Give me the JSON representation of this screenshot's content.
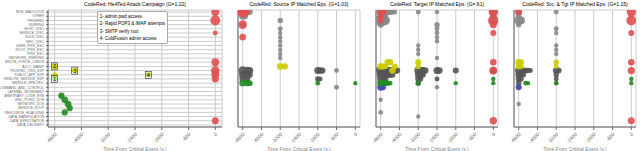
{
  "chart_data": [
    {
      "type": "scatter",
      "title": "CodeRed: HeATed Attack Campaign (G=1.22)",
      "xlabel": "Time From Critical Event (s.)",
      "xlim": [
        -5000,
        200
      ],
      "xticks": [
        -4800,
        -4000,
        -3200,
        -2400,
        -1600,
        -800,
        0
      ],
      "ylim": [
        -0.5,
        27.5
      ],
      "yticks": [
        {
          "value": 0,
          "label": "DATA_DELIVERY"
        },
        {
          "value": 1,
          "label": "DATA_EXFILTRATION"
        },
        {
          "value": 2,
          "label": "DATA_MANIPULATION"
        },
        {
          "value": 3,
          "label": "RESOURCE_HIJACKING"
        },
        {
          "value": 4,
          "label": "SERVICE_STOP"
        },
        {
          "value": 5,
          "label": "NETWORK_DOS"
        },
        {
          "value": 6,
          "label": "END_POINT_DOS"
        },
        {
          "value": 7,
          "label": "ARBITRARY_CODE_EXE"
        },
        {
          "value": 8,
          "label": "LATERAL_MOVEMENT"
        },
        {
          "value": 9,
          "label": "COMMAND_AND_CONTROL"
        },
        {
          "value": 10,
          "label": "SERVICE_SPECIFIC"
        },
        {
          "value": 11,
          "label": "REMOTE_SERVICE_EXP"
        },
        {
          "value": 12,
          "label": "PUBLIC_APP_EXP"
        },
        {
          "value": 13,
          "label": "TRUSTED_ORG_EXP"
        },
        {
          "value": 14,
          "label": "ACCT_MANIP"
        },
        {
          "value": 15,
          "label": "BRUTE_FORCE_CREDS"
        },
        {
          "value": 16,
          "label": "NETWORK_SNIFFING"
        },
        {
          "value": 17,
          "label": "PRIV_ESC"
        },
        {
          "value": 18,
          "label": "ROOT_PRIV_ESC"
        },
        {
          "value": 19,
          "label": "USER_PRIV_ESC"
        },
        {
          "value": 20,
          "label": "INFO_DISC"
        },
        {
          "value": 21,
          "label": "VULN_DISC"
        },
        {
          "value": 22,
          "label": "SERVICE_DISC"
        },
        {
          "value": 23,
          "label": "HOST_DISC"
        },
        {
          "value": 24,
          "label": "SURFING"
        },
        {
          "value": 25,
          "label": "PHISHING"
        },
        {
          "value": 26,
          "label": "OTHER"
        },
        {
          "value": 27,
          "label": "NON_MALICIOUS"
        }
      ],
      "grid": true,
      "x": [
        -4800,
        -4200,
        -4800,
        -2000,
        -4800,
        -4600,
        -4500,
        -4400,
        -4350,
        -4500,
        0,
        0,
        0,
        0,
        0,
        0,
        0,
        0
      ],
      "y": [
        14,
        13,
        12,
        12,
        11,
        7,
        6,
        5,
        4,
        3,
        27,
        25,
        22,
        15,
        13,
        12,
        11,
        1
      ],
      "size": [
        14,
        12,
        11,
        10,
        10,
        16,
        18,
        18,
        16,
        16,
        28,
        40,
        10,
        25,
        30,
        25,
        20,
        20
      ],
      "colors": [
        "#cccc00",
        "#cccc00",
        "#cccc00",
        "#aad400",
        "#90ee90",
        "#228b22",
        "#228b22",
        "#228b22",
        "#228b22",
        "#228b22",
        "#e05050",
        "#e05050",
        "#e05050",
        "#e05050",
        "#e05050",
        "#e05050",
        "#e05050",
        "#e05050"
      ],
      "annotations": [
        {
          "text": "1",
          "x": -4800,
          "y": 11
        },
        {
          "text": "2",
          "x": -4800,
          "y": 14
        },
        {
          "text": "3",
          "x": -4200,
          "y": 13
        },
        {
          "text": "4",
          "x": -2000,
          "y": 12
        }
      ],
      "text_box": [
        "1- admin.pwd access",
        "2- Rapid POP3 & IMAP attempts",
        "3- SMTP verify root",
        "4- ColdFusion admin access"
      ]
    },
    {
      "type": "scatter",
      "title": "CodeRed: Source IP Matched Eps. (G=1.03)",
      "xlabel": "Time From Critical Event (s.)",
      "xlim": [
        -5000,
        200
      ],
      "xticks": [
        -4800,
        -4000,
        -3200,
        -2400,
        -1600,
        -800,
        0
      ],
      "ylim": [
        -0.5,
        27.5
      ],
      "yticks": [
        0,
        1,
        2,
        3,
        4,
        5,
        6,
        7,
        8,
        9,
        10,
        11,
        12,
        13,
        14,
        15,
        16,
        17,
        18,
        19,
        20,
        21,
        22,
        23,
        24,
        25,
        26,
        27
      ],
      "tick_labels": "x",
      "grid": true,
      "x": [
        -4800,
        -4700,
        -4600,
        -4500,
        -4800,
        -4700,
        -3200,
        -4800,
        -3200,
        -3200,
        -3200,
        -3200,
        -3200,
        -3200,
        -3200,
        -3200,
        -4800,
        -4600,
        -4500,
        -1600,
        -1500,
        -1400,
        -800,
        -4800,
        -4600,
        -4500,
        -4800,
        -4600,
        -1600,
        -1500,
        -800,
        -3200,
        -3000,
        -4800,
        -4600,
        -4500,
        -1600,
        0,
        -4800,
        -4700,
        -4800,
        -4800
      ],
      "y": [
        27,
        27,
        27,
        27,
        26,
        26,
        25,
        24,
        23,
        22,
        21,
        20,
        19,
        18,
        17,
        16,
        13,
        13,
        13,
        13,
        13,
        13,
        13,
        12,
        12,
        12,
        11,
        11,
        11,
        11,
        9,
        14,
        14,
        10,
        10,
        10,
        10,
        10,
        27,
        27,
        24,
        21
      ],
      "size": [
        25,
        20,
        18,
        15,
        20,
        15,
        12,
        12,
        10,
        8,
        8,
        8,
        8,
        8,
        8,
        8,
        30,
        25,
        20,
        20,
        18,
        16,
        10,
        22,
        18,
        16,
        18,
        14,
        12,
        10,
        10,
        18,
        16,
        18,
        16,
        14,
        10,
        8,
        45,
        35,
        30,
        18
      ],
      "colors": [
        "#888888",
        "#888888",
        "#888888",
        "#888888",
        "#888888",
        "#888888",
        "#888888",
        "#888888",
        "#888888",
        "#888888",
        "#888888",
        "#888888",
        "#888888",
        "#888888",
        "#888888",
        "#888888",
        "#555555",
        "#555555",
        "#555555",
        "#555555",
        "#555555",
        "#555555",
        "#888888",
        "#555555",
        "#555555",
        "#555555",
        "#555555",
        "#555555",
        "#555555",
        "#555555",
        "#888888",
        "#cccc00",
        "#cccc00",
        "#228b22",
        "#228b22",
        "#228b22",
        "#228b22",
        "#228b22",
        "#e05050",
        "#e05050",
        "#e05050",
        "#e05050"
      ]
    },
    {
      "type": "scatter",
      "title": "CodeRed: Target IP Matched Eps. (G=.61)",
      "xlabel": "Time From Critical Event (s.)",
      "xlim": [
        -5000,
        200
      ],
      "xticks": [
        -4800,
        -4000,
        -3200,
        -2400,
        -1600,
        -800,
        0
      ],
      "ylim": [
        -0.5,
        27.5
      ],
      "yticks": [
        0,
        1,
        2,
        3,
        4,
        5,
        6,
        7,
        8,
        9,
        10,
        11,
        12,
        13,
        14,
        15,
        16,
        17,
        18,
        19,
        20,
        21,
        22,
        23,
        24,
        25,
        26,
        27
      ],
      "tick_labels": "x",
      "grid": true,
      "x": [
        -4800,
        -4700,
        -4600,
        -4500,
        -4400,
        -4300,
        -4200,
        -3200,
        -2400,
        0,
        -4800,
        -4700,
        -4600,
        0,
        -4800,
        -4700,
        -4600,
        0,
        -4800,
        -2400,
        -2400,
        -2400,
        -2400,
        -2400,
        -3200,
        -3200,
        -3200,
        -2400,
        -4800,
        -4700,
        -4600,
        -4500,
        -4400,
        -4300,
        -4200,
        -4100,
        -3200,
        -3100,
        -3000,
        -2900,
        -2400,
        -2300,
        -1600,
        0,
        -4800,
        -4700,
        -4600,
        -4500,
        -4400,
        -4300,
        -3200,
        -3100,
        -3000,
        -4800,
        -4700,
        -4600,
        -3200,
        -3100,
        -2400,
        -4800,
        -4700,
        -3200,
        -2400,
        -4800,
        -4800,
        -3200,
        -3200,
        -4500,
        -4400,
        -4300,
        -4200,
        -3200,
        -4800,
        -4700,
        -4600,
        -4800,
        -4700,
        -4800,
        -4700,
        -4600,
        -4500,
        -4400,
        -3200,
        -1600,
        0,
        0,
        -4800,
        -4700,
        -4800,
        -4800,
        0,
        0,
        0,
        0,
        0,
        0,
        0
      ],
      "y": [
        27,
        27,
        27,
        27,
        27,
        27,
        27,
        27,
        27,
        27,
        26,
        26,
        26,
        26,
        25,
        25,
        25,
        25,
        24,
        24,
        23,
        22,
        21,
        20,
        19,
        18,
        17,
        16,
        13,
        13,
        13,
        13,
        13,
        13,
        13,
        13,
        13,
        13,
        13,
        13,
        13,
        13,
        13,
        13,
        12,
        12,
        12,
        12,
        12,
        12,
        12,
        12,
        12,
        11,
        11,
        11,
        11,
        11,
        11,
        10,
        10,
        10,
        9,
        6,
        3,
        2,
        15,
        15,
        15,
        13,
        14,
        14,
        14,
        14,
        14,
        9,
        9,
        10,
        10,
        10,
        10,
        10,
        10,
        10,
        10,
        11,
        27,
        27,
        26,
        25,
        27,
        25,
        24,
        22,
        15,
        13,
        1
      ],
      "size": [
        30,
        25,
        22,
        18,
        15,
        12,
        10,
        10,
        8,
        30,
        18,
        15,
        12,
        20,
        55,
        45,
        35,
        18,
        15,
        12,
        10,
        10,
        8,
        8,
        8,
        8,
        8,
        8,
        35,
        30,
        28,
        25,
        22,
        20,
        18,
        16,
        25,
        22,
        20,
        18,
        20,
        18,
        15,
        20,
        25,
        22,
        20,
        18,
        16,
        14,
        18,
        16,
        14,
        20,
        18,
        15,
        15,
        12,
        10,
        15,
        12,
        12,
        8,
        8,
        10,
        8,
        15,
        18,
        16,
        18,
        14,
        12,
        18,
        15,
        12,
        20,
        15,
        18,
        16,
        14,
        12,
        10,
        10,
        8,
        8,
        8,
        22,
        18,
        15,
        12,
        35,
        45,
        20,
        15,
        18,
        25,
        22
      ],
      "colors": [
        "#888888",
        "#888888",
        "#888888",
        "#888888",
        "#888888",
        "#888888",
        "#888888",
        "#888888",
        "#888888",
        "#888888",
        "#888888",
        "#888888",
        "#888888",
        "#888888",
        "#888888",
        "#888888",
        "#888888",
        "#888888",
        "#888888",
        "#888888",
        "#888888",
        "#888888",
        "#888888",
        "#888888",
        "#888888",
        "#888888",
        "#888888",
        "#888888",
        "#555555",
        "#555555",
        "#555555",
        "#555555",
        "#555555",
        "#555555",
        "#555555",
        "#555555",
        "#555555",
        "#555555",
        "#555555",
        "#555555",
        "#555555",
        "#555555",
        "#555555",
        "#555555",
        "#555555",
        "#555555",
        "#555555",
        "#555555",
        "#555555",
        "#555555",
        "#555555",
        "#555555",
        "#555555",
        "#555555",
        "#555555",
        "#555555",
        "#555555",
        "#555555",
        "#555555",
        "#555555",
        "#555555",
        "#555555",
        "#888888",
        "#888888",
        "#888888",
        "#888888",
        "#cccc00",
        "#cccc00",
        "#cccc00",
        "#cccc00",
        "#cccc00",
        "#cccc00",
        "#cccc00",
        "#cccc00",
        "#cccc00",
        "#4444bb",
        "#4444bb",
        "#228b22",
        "#228b22",
        "#228b22",
        "#228b22",
        "#228b22",
        "#228b22",
        "#228b22",
        "#228b22",
        "#228b22",
        "#e05050",
        "#e05050",
        "#e05050",
        "#e05050",
        "#e05050",
        "#e05050",
        "#e05050",
        "#e05050",
        "#e05050",
        "#e05050",
        "#e05050"
      ]
    },
    {
      "type": "scatter",
      "title": "CodeRed: Src. & Tgt IP Matched Eps. (G=1.15)",
      "xlabel": "Time From Critical Event (s.)",
      "xlim": [
        -5000,
        200
      ],
      "xticks": [
        -4800,
        -4000,
        -3200,
        -2400,
        -1600,
        -800,
        0
      ],
      "ylim": [
        -0.5,
        27.5
      ],
      "yticks": [
        0,
        1,
        2,
        3,
        4,
        5,
        6,
        7,
        8,
        9,
        10,
        11,
        12,
        13,
        14,
        15,
        16,
        17,
        18,
        19,
        20,
        21,
        22,
        23,
        24,
        25,
        26,
        27
      ],
      "tick_labels": "x",
      "grid": true,
      "x": [
        -4800,
        -3200,
        -4800,
        -4800,
        -4700,
        -4800,
        -3200,
        -3200,
        -3200,
        -3200,
        -3200,
        -4800,
        -4700,
        -4600,
        -4500,
        -4400,
        -4300,
        -3200,
        -3100,
        -4800,
        -4700,
        -4600,
        -3200,
        -4800,
        -4700,
        -3200,
        -4800,
        -3200,
        -4800,
        -4800,
        -4800,
        -4700,
        -3200,
        -4800,
        -4700,
        -3200,
        -4500,
        -4400,
        -3200,
        0,
        0,
        -4800,
        -4800,
        0,
        0,
        0,
        0,
        0,
        0
      ],
      "y": [
        27,
        27,
        26,
        25,
        25,
        24,
        23,
        22,
        19,
        18,
        17,
        13,
        13,
        13,
        13,
        13,
        13,
        13,
        13,
        12,
        12,
        12,
        12,
        11,
        11,
        11,
        10,
        10,
        9,
        5,
        15,
        15,
        15,
        14,
        14,
        14,
        10,
        10,
        10,
        10,
        11,
        9,
        27,
        27,
        25,
        22,
        15,
        13,
        1
      ],
      "size": [
        20,
        10,
        12,
        35,
        25,
        12,
        10,
        8,
        8,
        8,
        8,
        22,
        18,
        16,
        14,
        12,
        10,
        18,
        15,
        18,
        15,
        12,
        12,
        15,
        12,
        10,
        12,
        8,
        8,
        8,
        18,
        15,
        12,
        15,
        12,
        10,
        10,
        8,
        8,
        8,
        8,
        15,
        18,
        35,
        40,
        15,
        18,
        22,
        20
      ],
      "colors": [
        "#888888",
        "#888888",
        "#888888",
        "#888888",
        "#888888",
        "#888888",
        "#888888",
        "#888888",
        "#888888",
        "#888888",
        "#888888",
        "#555555",
        "#555555",
        "#555555",
        "#555555",
        "#555555",
        "#555555",
        "#555555",
        "#555555",
        "#555555",
        "#555555",
        "#555555",
        "#555555",
        "#555555",
        "#555555",
        "#555555",
        "#555555",
        "#555555",
        "#888888",
        "#888888",
        "#cccc00",
        "#cccc00",
        "#cccc00",
        "#cccc00",
        "#cccc00",
        "#cccc00",
        "#228b22",
        "#228b22",
        "#228b22",
        "#228b22",
        "#228b22",
        "#4444bb",
        "#e05050",
        "#e05050",
        "#e05050",
        "#e05050",
        "#e05050",
        "#e05050",
        "#e05050"
      ]
    }
  ]
}
